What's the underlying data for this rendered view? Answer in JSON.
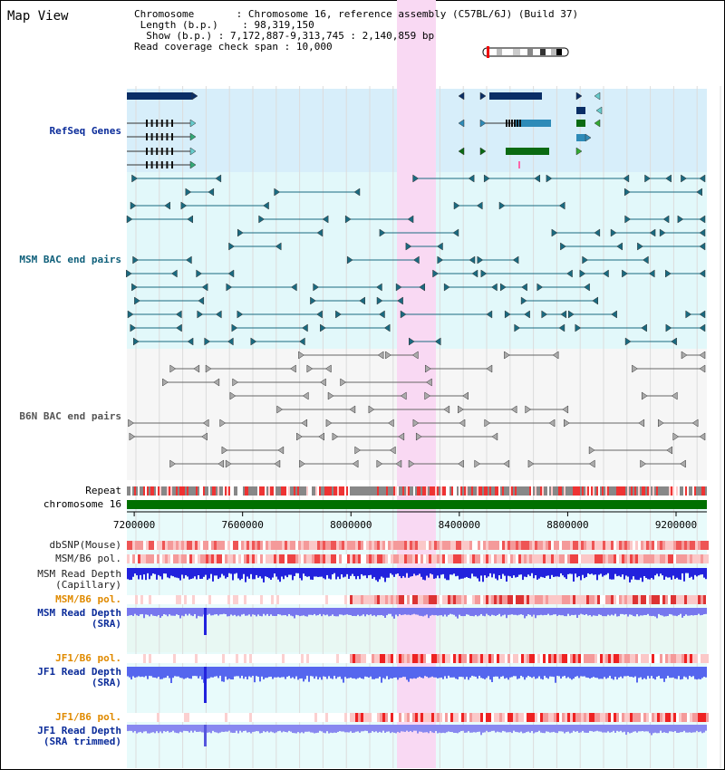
{
  "title": "Map View",
  "info": {
    "chromosome_key": "Chromosome",
    "chromosome_val": "Chromosome 16, reference assembly (C57BL/6J) (Build 37)",
    "length_key": "Length (b.p.)",
    "length_val": "98,319,150",
    "show_key": "Show (b.p.)",
    "show_val": "7,172,887-9,313,745 : 2,140,859 bp",
    "span_key": "Read coverage check span",
    "span_val": "10,000"
  },
  "tracks": {
    "refseq": "RefSeq Genes",
    "msm_bac": "MSM BAC end pairs",
    "b6n_bac": "B6N BAC end pairs",
    "repeat": "Repeat",
    "chromosome": "chromosome 16",
    "dbsnp": "dbSNP(Mouse)",
    "msm_b6_pol_1": "MSM/B6 pol.",
    "msm_depth_cap": "MSM Read Depth\n(Capillary)",
    "msm_b6_pol_2": "MSM/B6 pol.",
    "msm_depth_sra": "MSM Read Depth\n(SRA)",
    "jf1_b6_pol_1": "JF1/B6 pol.",
    "jf1_depth_sra": "JF1 Read Depth\n(SRA)",
    "jf1_b6_pol_2": "JF1/B6 pol.",
    "jf1_depth_trim": "JF1 Read Depth\n(SRA trimmed)"
  },
  "axis": {
    "ticks": [
      "7200000",
      "7600000",
      "8000000",
      "8400000",
      "8800000",
      "9200000"
    ]
  },
  "colors": {
    "highlight": "#f9d9f3",
    "refseq_bg": "#d7eefa",
    "msm_bg": "#e2f8fa",
    "depth_bg": "#e8f8f3",
    "chromosome_bar": "#007000",
    "navy": "#0a2e66",
    "teal": "#2e8bb8",
    "green": "#0a6a12",
    "depth_blue": "#2222ee",
    "depth_light": "#7777ee"
  }
}
